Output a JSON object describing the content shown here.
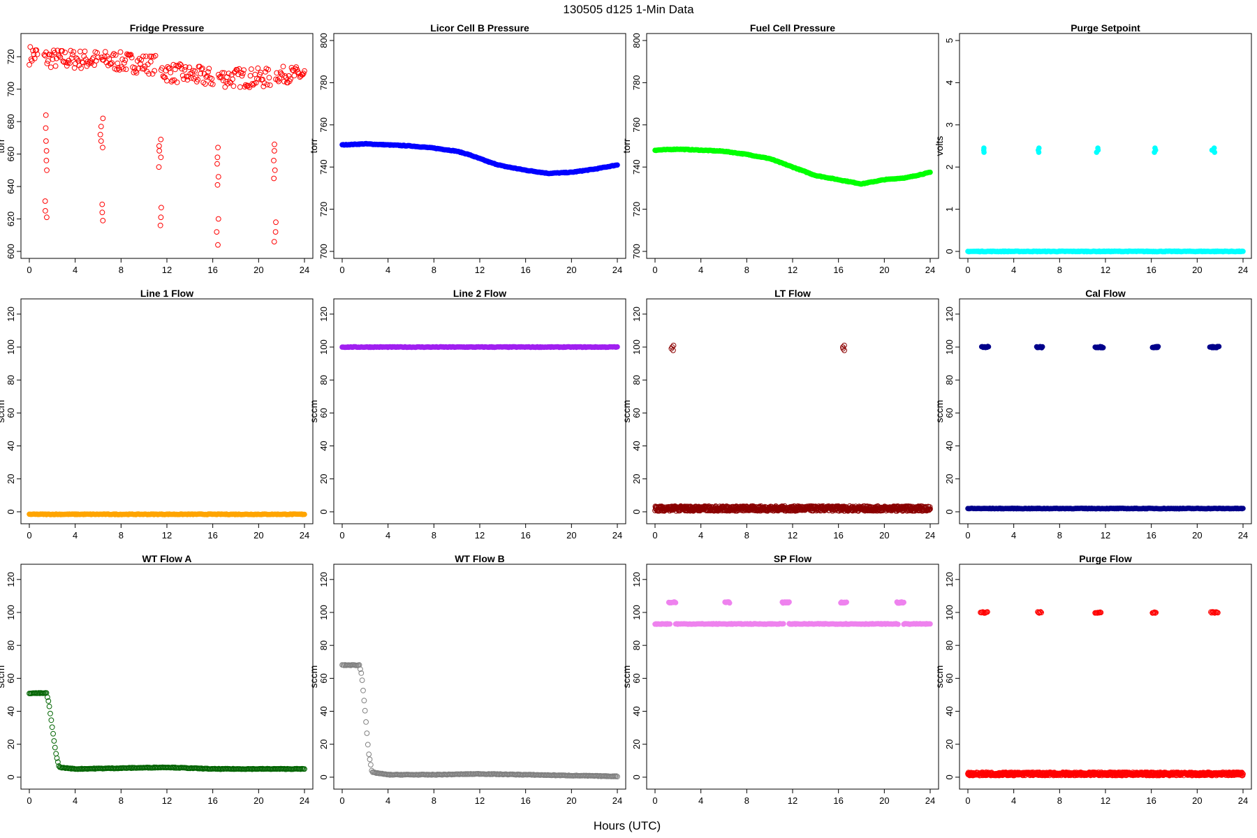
{
  "figure": {
    "title": "130505   d125   1-Min Data",
    "xlabel": "Hours (UTC)"
  },
  "chart_data": [
    {
      "type": "scatter",
      "title": "Fridge Pressure",
      "ylabel": "torr",
      "color": "#ff0000",
      "marker": "open",
      "xlim": [
        0,
        24
      ],
      "ylim": [
        600,
        730
      ],
      "xticks": [
        0,
        4,
        8,
        12,
        16,
        20,
        24
      ],
      "yticks": [
        600,
        620,
        640,
        660,
        680,
        700,
        720
      ],
      "series": [
        {
          "name": "main",
          "segments": [
            {
              "x": [
                0,
                0.7
              ],
              "y": [
                721,
                721
              ],
              "spread": 6
            },
            {
              "x": [
                1.3,
                6.0
              ],
              "y": [
                719,
                718
              ],
              "spread": 6
            },
            {
              "x": [
                6.3,
                11.0
              ],
              "y": [
                718,
                715
              ],
              "spread": 6
            },
            {
              "x": [
                11.5,
                16.0
              ],
              "y": [
                711,
                707
              ],
              "spread": 6
            },
            {
              "x": [
                16.5,
                21.0
              ],
              "y": [
                707,
                707
              ],
              "spread": 6
            },
            {
              "x": [
                21.5,
                24.0
              ],
              "y": [
                709,
                709
              ],
              "spread": 5
            }
          ]
        },
        {
          "name": "cal",
          "clusters": [
            {
              "x": 1.4,
              "y": [
                684,
                676,
                668,
                662,
                656,
                650,
                631,
                625,
                621
              ]
            },
            {
              "x": 6.3,
              "y": [
                682,
                677,
                672,
                668,
                664,
                629,
                624,
                619
              ]
            },
            {
              "x": 11.4,
              "y": [
                669,
                665,
                662,
                658,
                652,
                627,
                621,
                616
              ]
            },
            {
              "x": 16.4,
              "y": [
                664,
                658,
                654,
                646,
                641,
                620,
                612,
                604
              ]
            },
            {
              "x": 21.4,
              "y": [
                666,
                662,
                656,
                650,
                645,
                618,
                612,
                606
              ]
            }
          ]
        }
      ]
    },
    {
      "type": "scatter",
      "title": "Licor Cell B Pressure",
      "ylabel": "torr",
      "color": "#0000ff",
      "marker": "filled",
      "xlim": [
        0,
        24
      ],
      "ylim": [
        700,
        800
      ],
      "xticks": [
        0,
        4,
        8,
        12,
        16,
        20,
        24
      ],
      "yticks": [
        700,
        720,
        740,
        760,
        780,
        800
      ],
      "series": [
        {
          "name": "main",
          "x": [
            0,
            2,
            4,
            6,
            8,
            10,
            11,
            12,
            13,
            14,
            16,
            18,
            20,
            22,
            24
          ],
          "y": [
            750.5,
            751,
            750.5,
            750,
            749,
            747.5,
            746,
            744,
            742,
            740.5,
            738.5,
            737,
            737.5,
            739,
            741
          ]
        }
      ]
    },
    {
      "type": "scatter",
      "title": "Fuel Cell Pressure",
      "ylabel": "torr",
      "color": "#00ff00",
      "marker": "filled",
      "xlim": [
        0,
        24
      ],
      "ylim": [
        700,
        800
      ],
      "xticks": [
        0,
        4,
        8,
        12,
        16,
        20,
        24
      ],
      "yticks": [
        700,
        720,
        740,
        760,
        780,
        800
      ],
      "series": [
        {
          "name": "main",
          "x": [
            0,
            2,
            4,
            6,
            8,
            10,
            11,
            12,
            13,
            14,
            16,
            18,
            20,
            22,
            24
          ],
          "y": [
            748,
            748.5,
            748,
            747.5,
            746,
            744,
            742,
            740,
            738,
            736,
            734,
            732,
            734,
            735,
            737.5
          ]
        }
      ]
    },
    {
      "type": "scatter",
      "title": "Purge Setpoint",
      "ylabel": "volts",
      "color": "#00ffff",
      "marker": "filled",
      "xlim": [
        0,
        24
      ],
      "ylim": [
        0,
        5
      ],
      "xticks": [
        0,
        4,
        8,
        12,
        16,
        20,
        24
      ],
      "yticks": [
        0,
        1,
        2,
        3,
        4,
        5
      ],
      "series": [
        {
          "name": "main",
          "x": [
            0,
            24
          ],
          "y": [
            0,
            0
          ]
        },
        {
          "name": "cal",
          "clusters": [
            {
              "x": 1.3,
              "y": [
                2.35,
                2.4,
                2.45
              ]
            },
            {
              "x": 6.2,
              "y": [
                2.35,
                2.4,
                2.45
              ]
            },
            {
              "x": 11.3,
              "y": [
                2.35,
                2.4,
                2.45
              ]
            },
            {
              "x": 16.3,
              "y": [
                2.35,
                2.4,
                2.45
              ]
            },
            {
              "x": 21.4,
              "y": [
                2.35,
                2.4,
                2.45
              ]
            }
          ]
        }
      ]
    },
    {
      "type": "scatter",
      "title": "Line 1 Flow",
      "ylabel": "sccm",
      "color": "#ffa500",
      "marker": "filled",
      "xlim": [
        0,
        24
      ],
      "ylim": [
        -3,
        125
      ],
      "xticks": [
        0,
        4,
        8,
        12,
        16,
        20,
        24
      ],
      "yticks": [
        0,
        20,
        40,
        60,
        80,
        100,
        120
      ],
      "series": [
        {
          "name": "main",
          "x": [
            0,
            24
          ],
          "y": [
            -1.5,
            -1.5
          ]
        }
      ]
    },
    {
      "type": "scatter",
      "title": "Line 2 Flow",
      "ylabel": "sccm",
      "color": "#a020f0",
      "marker": "filled",
      "xlim": [
        0,
        24
      ],
      "ylim": [
        -3,
        125
      ],
      "xticks": [
        0,
        4,
        8,
        12,
        16,
        20,
        24
      ],
      "yticks": [
        0,
        20,
        40,
        60,
        80,
        100,
        120
      ],
      "series": [
        {
          "name": "main",
          "x": [
            0,
            24
          ],
          "y": [
            100,
            100
          ]
        }
      ]
    },
    {
      "type": "scatter",
      "title": "LT Flow",
      "ylabel": "sccm",
      "color": "#8b0000",
      "marker": "open",
      "xlim": [
        0,
        24
      ],
      "ylim": [
        -3,
        125
      ],
      "xticks": [
        0,
        4,
        8,
        12,
        16,
        20,
        24
      ],
      "yticks": [
        0,
        20,
        40,
        60,
        80,
        100,
        120
      ],
      "series": [
        {
          "name": "main",
          "x": [
            0,
            24
          ],
          "y": [
            2,
            2
          ],
          "spread": 1.5
        },
        {
          "name": "cal",
          "clusters": [
            {
              "x": 1.5,
              "y": [
                98,
                100,
                101,
                99
              ]
            },
            {
              "x": 16.5,
              "y": [
                98,
                100,
                101,
                99
              ]
            }
          ]
        }
      ]
    },
    {
      "type": "scatter",
      "title": "Cal Flow",
      "ylabel": "sccm",
      "color": "#00008b",
      "marker": "filled",
      "xlim": [
        0,
        24
      ],
      "ylim": [
        -3,
        125
      ],
      "xticks": [
        0,
        4,
        8,
        12,
        16,
        20,
        24
      ],
      "yticks": [
        0,
        20,
        40,
        60,
        80,
        100,
        120
      ],
      "series": [
        {
          "name": "main",
          "x": [
            0,
            24
          ],
          "y": [
            2,
            2
          ]
        },
        {
          "name": "cal",
          "bursts": [
            [
              1.2,
              1.8
            ],
            [
              6.0,
              6.5
            ],
            [
              11.1,
              11.8
            ],
            [
              16.1,
              16.6
            ],
            [
              21.1,
              21.9
            ]
          ],
          "y": 100
        }
      ]
    },
    {
      "type": "scatter",
      "title": "WT Flow A",
      "ylabel": "sccm",
      "color": "#006400",
      "marker": "open",
      "xlim": [
        0,
        24
      ],
      "ylim": [
        -3,
        125
      ],
      "xticks": [
        0,
        4,
        8,
        12,
        16,
        20,
        24
      ],
      "yticks": [
        0,
        20,
        40,
        60,
        80,
        100,
        120
      ],
      "series": [
        {
          "name": "main",
          "x": [
            0,
            1.5,
            1.7,
            2.0,
            2.3,
            2.6,
            4,
            8,
            12,
            16,
            20,
            24
          ],
          "y": [
            51,
            51,
            45,
            30,
            15,
            6,
            5,
            5.5,
            6,
            5,
            5,
            5
          ]
        }
      ]
    },
    {
      "type": "scatter",
      "title": "WT Flow B",
      "ylabel": "sccm",
      "color": "#808080",
      "marker": "open",
      "xlim": [
        0,
        24
      ],
      "ylim": [
        -3,
        125
      ],
      "xticks": [
        0,
        4,
        8,
        12,
        16,
        20,
        24
      ],
      "yticks": [
        0,
        20,
        40,
        60,
        80,
        100,
        120
      ],
      "series": [
        {
          "name": "main",
          "x": [
            0,
            1.5,
            1.7,
            2.0,
            2.3,
            2.6,
            4,
            8,
            12,
            16,
            20,
            24
          ],
          "y": [
            68,
            68,
            62,
            40,
            15,
            3,
            1.5,
            1.5,
            2,
            1.5,
            1,
            0.5
          ]
        }
      ]
    },
    {
      "type": "scatter",
      "title": "SP Flow",
      "ylabel": "sccm",
      "color": "#ee82ee",
      "marker": "filled",
      "xlim": [
        0,
        24
      ],
      "ylim": [
        -3,
        125
      ],
      "xticks": [
        0,
        4,
        8,
        12,
        16,
        20,
        24
      ],
      "yticks": [
        0,
        20,
        40,
        60,
        80,
        100,
        120
      ],
      "series": [
        {
          "name": "main",
          "segments": [
            {
              "x": [
                0,
                1.3
              ],
              "y": [
                93,
                93
              ]
            },
            {
              "x": [
                1.8,
                11.2
              ],
              "y": [
                93,
                93
              ]
            },
            {
              "x": [
                11.7,
                21.2
              ],
              "y": [
                93,
                93
              ]
            },
            {
              "x": [
                21.7,
                24
              ],
              "y": [
                93,
                93
              ]
            }
          ]
        },
        {
          "name": "cal",
          "bursts": [
            [
              1.2,
              1.8
            ],
            [
              6.1,
              6.5
            ],
            [
              11.1,
              11.7
            ],
            [
              16.2,
              16.7
            ],
            [
              21.1,
              21.7
            ]
          ],
          "y": 106
        }
      ]
    },
    {
      "type": "scatter",
      "title": "Purge Flow",
      "ylabel": "sccm",
      "color": "#ff0000",
      "marker": "open",
      "xlim": [
        0,
        24
      ],
      "ylim": [
        -3,
        125
      ],
      "xticks": [
        0,
        4,
        8,
        12,
        16,
        20,
        24
      ],
      "yticks": [
        0,
        20,
        40,
        60,
        80,
        100,
        120
      ],
      "series": [
        {
          "name": "main",
          "x": [
            0,
            24
          ],
          "y": [
            2,
            2
          ],
          "spread": 1
        },
        {
          "name": "cal",
          "bursts": [
            [
              1.1,
              1.7
            ],
            [
              6.1,
              6.4
            ],
            [
              11.1,
              11.6
            ],
            [
              16.1,
              16.4
            ],
            [
              21.2,
              21.8
            ]
          ],
          "y": 100
        }
      ]
    }
  ]
}
